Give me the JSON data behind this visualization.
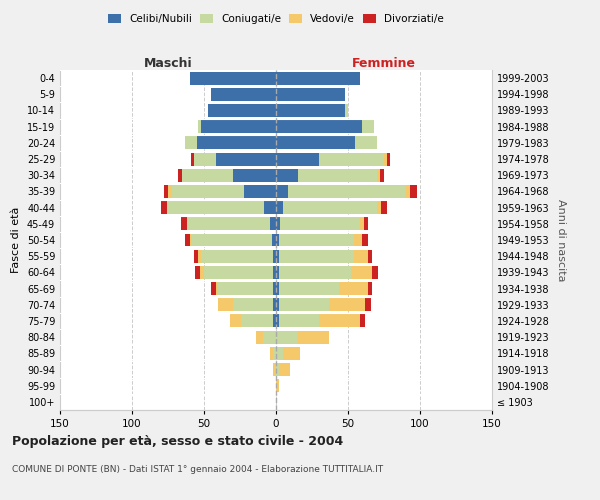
{
  "age_groups": [
    "100+",
    "95-99",
    "90-94",
    "85-89",
    "80-84",
    "75-79",
    "70-74",
    "65-69",
    "60-64",
    "55-59",
    "50-54",
    "45-49",
    "40-44",
    "35-39",
    "30-34",
    "25-29",
    "20-24",
    "15-19",
    "10-14",
    "5-9",
    "0-4"
  ],
  "birth_years": [
    "≤ 1903",
    "1904-1908",
    "1909-1913",
    "1914-1918",
    "1919-1923",
    "1924-1928",
    "1929-1933",
    "1934-1938",
    "1939-1943",
    "1944-1948",
    "1949-1953",
    "1954-1958",
    "1959-1963",
    "1964-1968",
    "1969-1973",
    "1974-1978",
    "1979-1983",
    "1984-1988",
    "1989-1993",
    "1994-1998",
    "1999-2003"
  ],
  "males": {
    "celibi": [
      0,
      0,
      0,
      0,
      0,
      2,
      2,
      2,
      2,
      2,
      3,
      4,
      8,
      22,
      30,
      42,
      55,
      52,
      47,
      45,
      60
    ],
    "coniugati": [
      0,
      0,
      1,
      2,
      9,
      22,
      28,
      38,
      48,
      50,
      55,
      58,
      68,
      50,
      35,
      15,
      8,
      2,
      0,
      0,
      0
    ],
    "vedovi": [
      0,
      0,
      1,
      2,
      5,
      8,
      10,
      2,
      3,
      2,
      2,
      0,
      0,
      3,
      0,
      0,
      0,
      0,
      0,
      0,
      0
    ],
    "divorziati": [
      0,
      0,
      0,
      0,
      0,
      0,
      0,
      3,
      3,
      3,
      3,
      4,
      4,
      3,
      3,
      2,
      0,
      0,
      0,
      0,
      0
    ]
  },
  "females": {
    "nubili": [
      0,
      0,
      0,
      0,
      0,
      2,
      2,
      2,
      2,
      2,
      2,
      3,
      5,
      8,
      15,
      30,
      55,
      60,
      48,
      48,
      58
    ],
    "coniugate": [
      0,
      0,
      2,
      5,
      15,
      28,
      35,
      42,
      50,
      52,
      52,
      55,
      65,
      82,
      55,
      45,
      15,
      8,
      2,
      0,
      0
    ],
    "vedove": [
      0,
      2,
      8,
      12,
      22,
      28,
      25,
      20,
      15,
      10,
      6,
      3,
      3,
      3,
      2,
      2,
      0,
      0,
      0,
      0,
      0
    ],
    "divorziate": [
      0,
      0,
      0,
      0,
      0,
      4,
      4,
      3,
      4,
      3,
      4,
      3,
      4,
      5,
      3,
      2,
      0,
      0,
      0,
      0,
      0
    ]
  },
  "color_celibi": "#3d6fa8",
  "color_coniugati": "#c5d9a0",
  "color_vedovi": "#f5c96a",
  "color_divorziati": "#cc2222",
  "title": "Popolazione per età, sesso e stato civile - 2004",
  "subtitle": "COMUNE DI PONTE (BN) - Dati ISTAT 1° gennaio 2004 - Elaborazione TUTTITALIA.IT",
  "ylabel_left": "Fasce di età",
  "ylabel_right": "Anni di nascita",
  "xlabel_max": 150,
  "bg_color": "#f0f0f0",
  "plot_bg": "#ffffff",
  "maschi_label": "Maschi",
  "femmine_label": "Femmine",
  "legend_labels": [
    "Celibi/Nubili",
    "Coniugati/e",
    "Vedovi/e",
    "Divorziati/e"
  ]
}
